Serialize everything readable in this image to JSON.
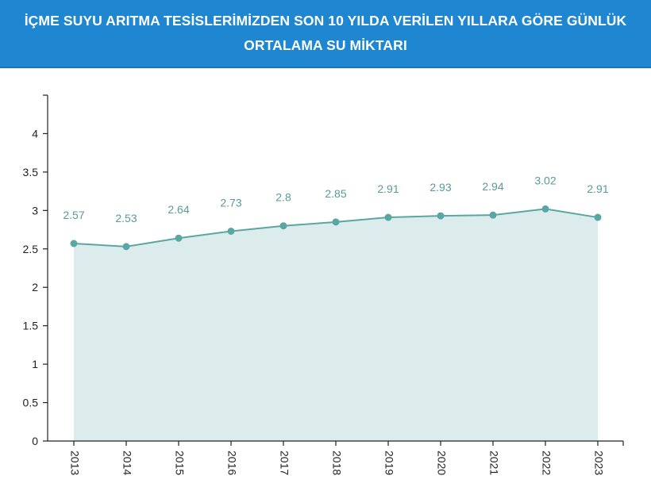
{
  "header": {
    "title": "İÇME SUYU ARITMA TESİSLERİMİZDEN SON 10 YILDA VERİLEN YILLARA GÖRE GÜNLÜK ORTALAMA SU MİKTARI"
  },
  "colors": {
    "header_bg": "#1f86d2",
    "line": "#5aa6a3",
    "area": "#dcecec",
    "label": "#5a9a98",
    "axis": "#222222"
  },
  "chart_data": {
    "type": "area",
    "title": "",
    "xlabel": "",
    "ylabel": "",
    "x": [
      "2013",
      "2014",
      "2015",
      "2016",
      "2017",
      "2018",
      "2019",
      "2020",
      "2021",
      "2022",
      "2023"
    ],
    "values": [
      2.57,
      2.53,
      2.64,
      2.73,
      2.8,
      2.85,
      2.91,
      2.93,
      2.94,
      3.02,
      2.91
    ],
    "value_labels": [
      "2.57",
      "2.53",
      "2.64",
      "2.73",
      "2.8",
      "2.85",
      "2.91",
      "2.93",
      "2.94",
      "3.02",
      "2.91"
    ],
    "yticks": [
      "0",
      "0.5",
      "1",
      "1.5",
      "2",
      "2.5",
      "3",
      "3.5",
      "4"
    ],
    "ylim": [
      0,
      4.5
    ],
    "grid": false,
    "legend": "none"
  }
}
